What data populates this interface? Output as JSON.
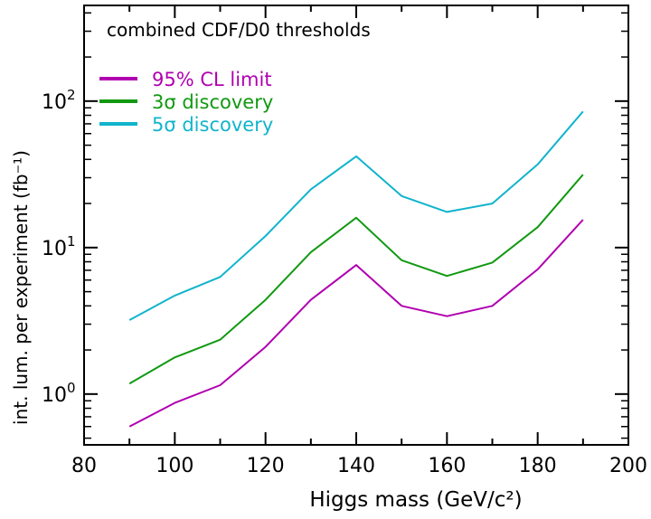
{
  "chart_data": {
    "type": "line",
    "title": "combined CDF/D0 thresholds",
    "xlabel": "Higgs mass (GeV/c²)",
    "ylabel": "int. lum. per experiment (fb⁻¹)",
    "x": [
      90,
      100,
      110,
      120,
      130,
      140,
      150,
      160,
      170,
      180,
      190
    ],
    "xlim": [
      80,
      200
    ],
    "ylim": [
      0.45,
      450
    ],
    "yscale": "log",
    "xticks": [
      "80",
      "100",
      "120",
      "140",
      "160",
      "180",
      "200"
    ],
    "yticks": [
      {
        "base": "10",
        "exp": "0"
      },
      {
        "base": "10",
        "exp": "1"
      },
      {
        "base": "10",
        "exp": "2"
      }
    ],
    "legend_position": "top-left",
    "grid": false,
    "series": [
      {
        "name": "95% CL limit",
        "color": "#b000b0",
        "values": [
          0.6,
          0.87,
          1.15,
          2.1,
          4.4,
          7.6,
          4.0,
          3.4,
          4.0,
          7.1,
          15.5
        ]
      },
      {
        "name": "3σ discovery",
        "color": "#119911",
        "values": [
          1.18,
          1.78,
          2.35,
          4.4,
          9.3,
          16.0,
          8.2,
          6.4,
          7.9,
          13.8,
          31.5
        ]
      },
      {
        "name": "5σ discovery",
        "color": "#11b4cc",
        "values": [
          3.2,
          4.7,
          6.3,
          12.0,
          25.0,
          42.0,
          22.5,
          17.5,
          20.0,
          37.0,
          85.0
        ]
      }
    ]
  }
}
